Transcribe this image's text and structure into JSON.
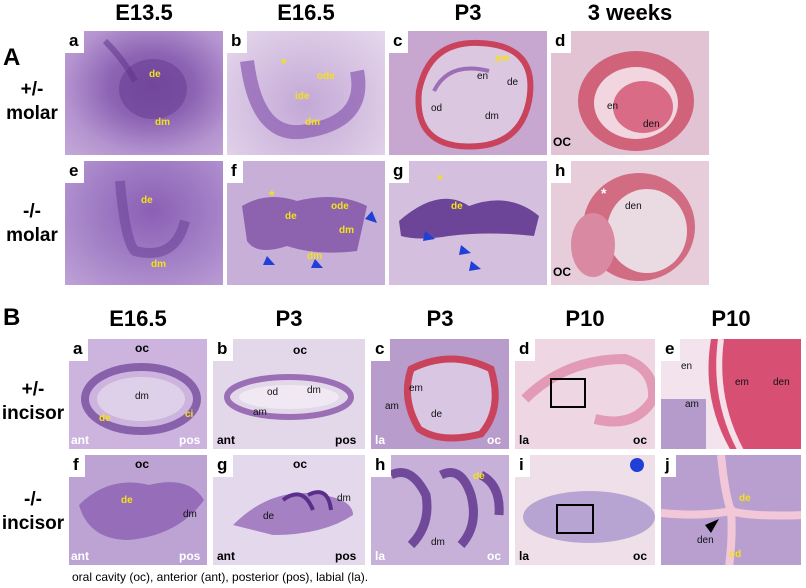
{
  "section_A": {
    "label": "A",
    "columns": [
      "E13.5",
      "E16.5",
      "P3",
      "3 weeks"
    ],
    "rows": [
      {
        "genotype": "+/-",
        "tooth": "molar"
      },
      {
        "genotype": "-/-",
        "tooth": "molar"
      }
    ],
    "panels": [
      {
        "letter": "a",
        "labels": [
          "de",
          "dm"
        ]
      },
      {
        "letter": "b",
        "labels": [
          "*",
          "ode",
          "ide",
          "dm"
        ]
      },
      {
        "letter": "c",
        "labels": [
          "am",
          "en",
          "de",
          "od",
          "dm"
        ]
      },
      {
        "letter": "d",
        "labels": [
          "en",
          "den",
          "OC"
        ]
      },
      {
        "letter": "e",
        "labels": [
          "de",
          "dm"
        ]
      },
      {
        "letter": "f",
        "labels": [
          "*",
          "ode",
          "de",
          "dm",
          "dm"
        ]
      },
      {
        "letter": "g",
        "labels": [
          "*",
          "de"
        ]
      },
      {
        "letter": "h",
        "labels": [
          "*",
          "den",
          "OC"
        ]
      }
    ]
  },
  "section_B": {
    "label": "B",
    "columns": [
      "E16.5",
      "P3",
      "P3",
      "P10",
      "P10"
    ],
    "rows": [
      {
        "genotype": "+/-",
        "tooth": "incisor"
      },
      {
        "genotype": "-/-",
        "tooth": "incisor"
      }
    ],
    "panels": [
      {
        "letter": "a",
        "labels": [
          "oc",
          "dm",
          "de",
          "ci",
          "ant",
          "pos"
        ]
      },
      {
        "letter": "b",
        "labels": [
          "oc",
          "od",
          "dm",
          "am",
          "ant",
          "pos"
        ]
      },
      {
        "letter": "c",
        "labels": [
          "em",
          "am",
          "de",
          "la",
          "oc"
        ]
      },
      {
        "letter": "d",
        "labels": [
          "la",
          "oc"
        ]
      },
      {
        "letter": "e",
        "labels": [
          "en",
          "em",
          "den",
          "am"
        ]
      },
      {
        "letter": "f",
        "labels": [
          "oc",
          "de",
          "dm",
          "ant",
          "pos"
        ]
      },
      {
        "letter": "g",
        "labels": [
          "oc",
          "dm",
          "de",
          "ant",
          "pos"
        ]
      },
      {
        "letter": "h",
        "labels": [
          "de",
          "dm",
          "la",
          "oc"
        ]
      },
      {
        "letter": "i",
        "labels": [
          "la",
          "oc"
        ]
      },
      {
        "letter": "j",
        "labels": [
          "de",
          "den",
          "od"
        ]
      }
    ]
  },
  "caption": "oral cavity (oc), anterior (ant), posterior (pos), labial (la).",
  "colors": {
    "stain_purple": "#9a6fb6",
    "stain_pink": "#e0a6c2",
    "dentin_red": "#c9435c",
    "label_yellow": "#f2e21a",
    "arrow_blue": "#1f3fd6"
  }
}
